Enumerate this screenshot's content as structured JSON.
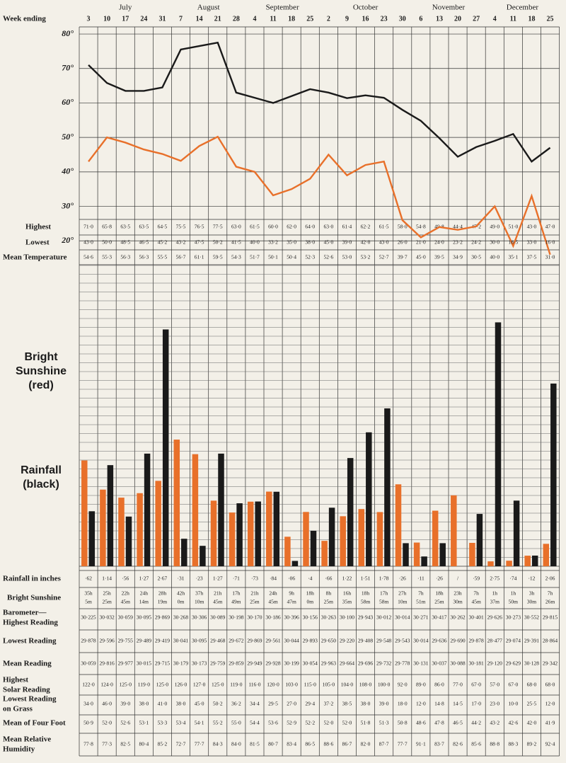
{
  "header": {
    "label": "Week ending",
    "months": [
      {
        "name": "July",
        "days": [
          3,
          10,
          17,
          24,
          31
        ]
      },
      {
        "name": "August",
        "days": [
          7,
          14,
          21,
          28
        ]
      },
      {
        "name": "September",
        "days": [
          4,
          11,
          18,
          25
        ]
      },
      {
        "name": "October",
        "days": [
          2,
          9,
          16,
          23,
          30
        ]
      },
      {
        "name": "November",
        "days": [
          6,
          13,
          20,
          27
        ]
      },
      {
        "name": "December",
        "days": [
          4,
          11,
          18,
          25
        ]
      }
    ]
  },
  "chart_data": [
    {
      "type": "line",
      "ylim": [
        15,
        82
      ],
      "grid": true,
      "yticks": [
        {
          "value": 80,
          "label": "80°"
        },
        {
          "value": 70,
          "label": "70°"
        },
        {
          "value": 60,
          "label": "60°"
        },
        {
          "value": 50,
          "label": "50°"
        },
        {
          "value": 40,
          "label": "40°"
        },
        {
          "value": 30,
          "label": "30°"
        },
        {
          "value": 20,
          "label": "20°"
        }
      ],
      "series": [
        {
          "name": "Highest",
          "color": "#1a1a1a",
          "values": [
            71.0,
            65.8,
            63.5,
            63.5,
            64.5,
            75.5,
            76.5,
            77.5,
            63.0,
            61.5,
            60.0,
            62.0,
            64.0,
            63.0,
            61.4,
            62.2,
            61.5,
            58.0,
            54.8,
            49.8,
            44.4,
            47.2,
            49.0,
            51.0,
            43.0,
            47.0
          ],
          "value_labels": [
            "71·0",
            "65·8",
            "63·5",
            "63·5",
            "64·5",
            "75·5",
            "76·5",
            "77·5",
            "63·0",
            "61·5",
            "60·0",
            "62·0",
            "64·0",
            "63·0",
            "61·4",
            "62·2",
            "61·5",
            "58·0",
            "54·8",
            "49·8",
            "44·4",
            "47·2",
            "49·0",
            "51·0",
            "43·0",
            "47·0"
          ]
        },
        {
          "name": "Lowest",
          "color": "#e8702a",
          "values": [
            43.0,
            50.0,
            48.5,
            46.5,
            45.2,
            43.2,
            47.5,
            50.2,
            41.5,
            40.0,
            33.2,
            35.0,
            38.0,
            45.0,
            39.0,
            42.0,
            43.0,
            26.0,
            21.0,
            24.0,
            23.2,
            24.2,
            30.0,
            18.5,
            33.0,
            16.0
          ],
          "value_labels": [
            "43·0",
            "50·0",
            "48·5",
            "46·5",
            "45·2",
            "43·2",
            "47·5",
            "50·2",
            "41·5",
            "40·0",
            "33·2",
            "35·0",
            "38·0",
            "45·0",
            "39·0",
            "42·0",
            "43·0",
            "26·0",
            "21·0",
            "24·0",
            "23·2",
            "24·2",
            "30·0",
            "18·5",
            "33·0",
            "16·0"
          ]
        }
      ]
    },
    {
      "type": "bar",
      "ylim": [
        0,
        3.4
      ],
      "y2lim": [
        0,
        100
      ],
      "annotations": [
        {
          "lines": [
            "Bright",
            "Sunshine",
            "(red)"
          ],
          "color": "#e8702a"
        },
        {
          "lines": [
            "Rainfall",
            "(black)"
          ],
          "color": "#1a1a1a"
        }
      ],
      "series": [
        {
          "name": "Rainfall in inches",
          "color": "#1a1a1a",
          "values": [
            0.62,
            1.14,
            0.56,
            1.27,
            2.67,
            0.31,
            0.23,
            1.27,
            0.71,
            0.73,
            0.84,
            0.06,
            0.4,
            0.66,
            1.22,
            1.51,
            1.78,
            0.26,
            0.11,
            0.26,
            null,
            0.59,
            2.75,
            0.74,
            0.12,
            2.06
          ],
          "value_labels": [
            "·62",
            "1·14",
            "·56",
            "1·27",
            "2·67",
            "·31",
            "·23",
            "1·27",
            "·71",
            "·73",
            "·84",
            "·06",
            "·4",
            "·66",
            "1·22",
            "1·51",
            "1·78",
            "·26",
            "·11",
            "·26",
            "/",
            "·59",
            "2·75",
            "·74",
            "·12",
            "2·06"
          ]
        },
        {
          "name": "Bright Sunshine",
          "color": "#e8702a",
          "axis": "y2",
          "values": [
            35.083,
            25.417,
            22.75,
            24.233,
            28.317,
            42.0,
            37.167,
            21.75,
            17.817,
            21.417,
            24.75,
            9.783,
            18.0,
            8.417,
            16.583,
            18.967,
            17.967,
            27.167,
            7.85,
            18.417,
            23.5,
            7.75,
            1.617,
            1.833,
            3.5,
            7.433
          ],
          "value_labels": [
            [
              "35h",
              "5m"
            ],
            [
              "25h",
              "25m"
            ],
            [
              "22h",
              "45m"
            ],
            [
              "24h",
              "14m"
            ],
            [
              "28h",
              "19m"
            ],
            [
              "42h",
              "0m"
            ],
            [
              "37h",
              "10m"
            ],
            [
              "21h",
              "45m"
            ],
            [
              "17h",
              "49m"
            ],
            [
              "21h",
              "25m"
            ],
            [
              "24h",
              "45m"
            ],
            [
              "9h",
              "47m"
            ],
            [
              "18h",
              "0m"
            ],
            [
              "8h",
              "25m"
            ],
            [
              "16h",
              "35m"
            ],
            [
              "18h",
              "58m"
            ],
            [
              "17h",
              "58m"
            ],
            [
              "27h",
              "10m"
            ],
            [
              "7h",
              "51m"
            ],
            [
              "18h",
              "25m"
            ],
            [
              "23h",
              "30m"
            ],
            [
              "7h",
              "45m"
            ],
            [
              "1h",
              "37m"
            ],
            [
              "1h",
              "50m"
            ],
            [
              "3h",
              "30m"
            ],
            [
              "7h",
              "26m"
            ]
          ]
        }
      ]
    }
  ],
  "table": {
    "rows": [
      {
        "label": [
          "Mean Temperature"
        ],
        "cells": [
          "54·6",
          "55·3",
          "56·3",
          "56·3",
          "55·5",
          "56·7",
          "61·1",
          "59·5",
          "54·3",
          "51·7",
          "50·1",
          "50·4",
          "52·3",
          "52·6",
          "53·0",
          "53·2",
          "52·7",
          "39·7",
          "45·0",
          "39·5",
          "34·9",
          "30·5",
          "40·0",
          "35·1",
          "37·5",
          "31·0"
        ]
      },
      {
        "label": [
          "Barometer—",
          "Highest Reading"
        ],
        "cells": [
          "30·225",
          "30·032",
          "30·059",
          "30·095",
          "29·869",
          "30·268",
          "30·306",
          "30·089",
          "30·198",
          "30·170",
          "30·186",
          "30·396",
          "30·156",
          "30·263",
          "30·100",
          "29·943",
          "30·012",
          "30·014",
          "30·271",
          "30·417",
          "30·262",
          "30·401",
          "29·626",
          "30·273",
          "30·552",
          "29·815"
        ]
      },
      {
        "label": [
          "Lowest Reading"
        ],
        "cells": [
          "29·878",
          "29·596",
          "29·755",
          "29·489",
          "29·419",
          "30·041",
          "30·095",
          "29·468",
          "29·672",
          "29·869",
          "29·561",
          "30·044",
          "29·893",
          "29·650",
          "29·220",
          "29·408",
          "29·548",
          "29·543",
          "30·014",
          "29·636",
          "29·690",
          "29·878",
          "28·477",
          "29·074",
          "29·391",
          "28·864"
        ]
      },
      {
        "label": [
          "Mean Reading"
        ],
        "cells": [
          "30·059",
          "29·816",
          "29·977",
          "30·015",
          "29·715",
          "30·179",
          "30·173",
          "29·759",
          "29·859",
          "29·949",
          "29·928",
          "30·199",
          "30·054",
          "29·963",
          "29·664",
          "29·696",
          "29·732",
          "29·778",
          "30·131",
          "30·037",
          "30·088",
          "30·181",
          "29·120",
          "29·629",
          "30·128",
          "29·342"
        ]
      },
      {
        "label": [
          "Highest",
          "Solar Reading"
        ],
        "cells": [
          "122·0",
          "124·0",
          "125·0",
          "119·0",
          "125·0",
          "126·0",
          "127·0",
          "125·0",
          "119·0",
          "116·0",
          "120·0",
          "103·0",
          "115·0",
          "105·0",
          "104·0",
          "108·0",
          "100·0",
          "92·0",
          "89·0",
          "86·0",
          "77·0",
          "67·0",
          "57·0",
          "67·0",
          "68·0",
          "68·0"
        ]
      },
      {
        "label": [
          "Lowest Reading",
          "on Grass"
        ],
        "cells": [
          "34·0",
          "46·0",
          "39·0",
          "38·0",
          "41·0",
          "38·0",
          "45·0",
          "50·2",
          "36·2",
          "34·4",
          "29·5",
          "27·0",
          "29·4",
          "37·2",
          "38·5",
          "38·0",
          "39·0",
          "18·0",
          "12·0",
          "14·8",
          "14·5",
          "17·0",
          "23·0",
          "10·0",
          "25·5",
          "12·0"
        ]
      },
      {
        "label": [
          "Mean of Four Foot"
        ],
        "cells": [
          "50·9",
          "52·0",
          "52·6",
          "53·1",
          "53·3",
          "53·4",
          "54·1",
          "55·2",
          "55·0",
          "54·4",
          "53·6",
          "52·9",
          "52·2",
          "52·0",
          "52·0",
          "51·8",
          "51·3",
          "50·8",
          "48·6",
          "47·8",
          "46·5",
          "44·2",
          "43·2",
          "42·6",
          "42·0",
          "41·9"
        ]
      },
      {
        "label": [
          "Mean Relative",
          "Humidity"
        ],
        "cells": [
          "77·8",
          "77·3",
          "82·5",
          "80·4",
          "85·2",
          "72·7",
          "77·7",
          "84·3",
          "84·0",
          "81·5",
          "80·7",
          "83·4",
          "86·5",
          "88·6",
          "86·7",
          "82·0",
          "87·7",
          "77·7",
          "91·1",
          "83·7",
          "82·6",
          "85·6",
          "88·8",
          "88·3",
          "89·2",
          "92·4"
        ]
      }
    ]
  }
}
